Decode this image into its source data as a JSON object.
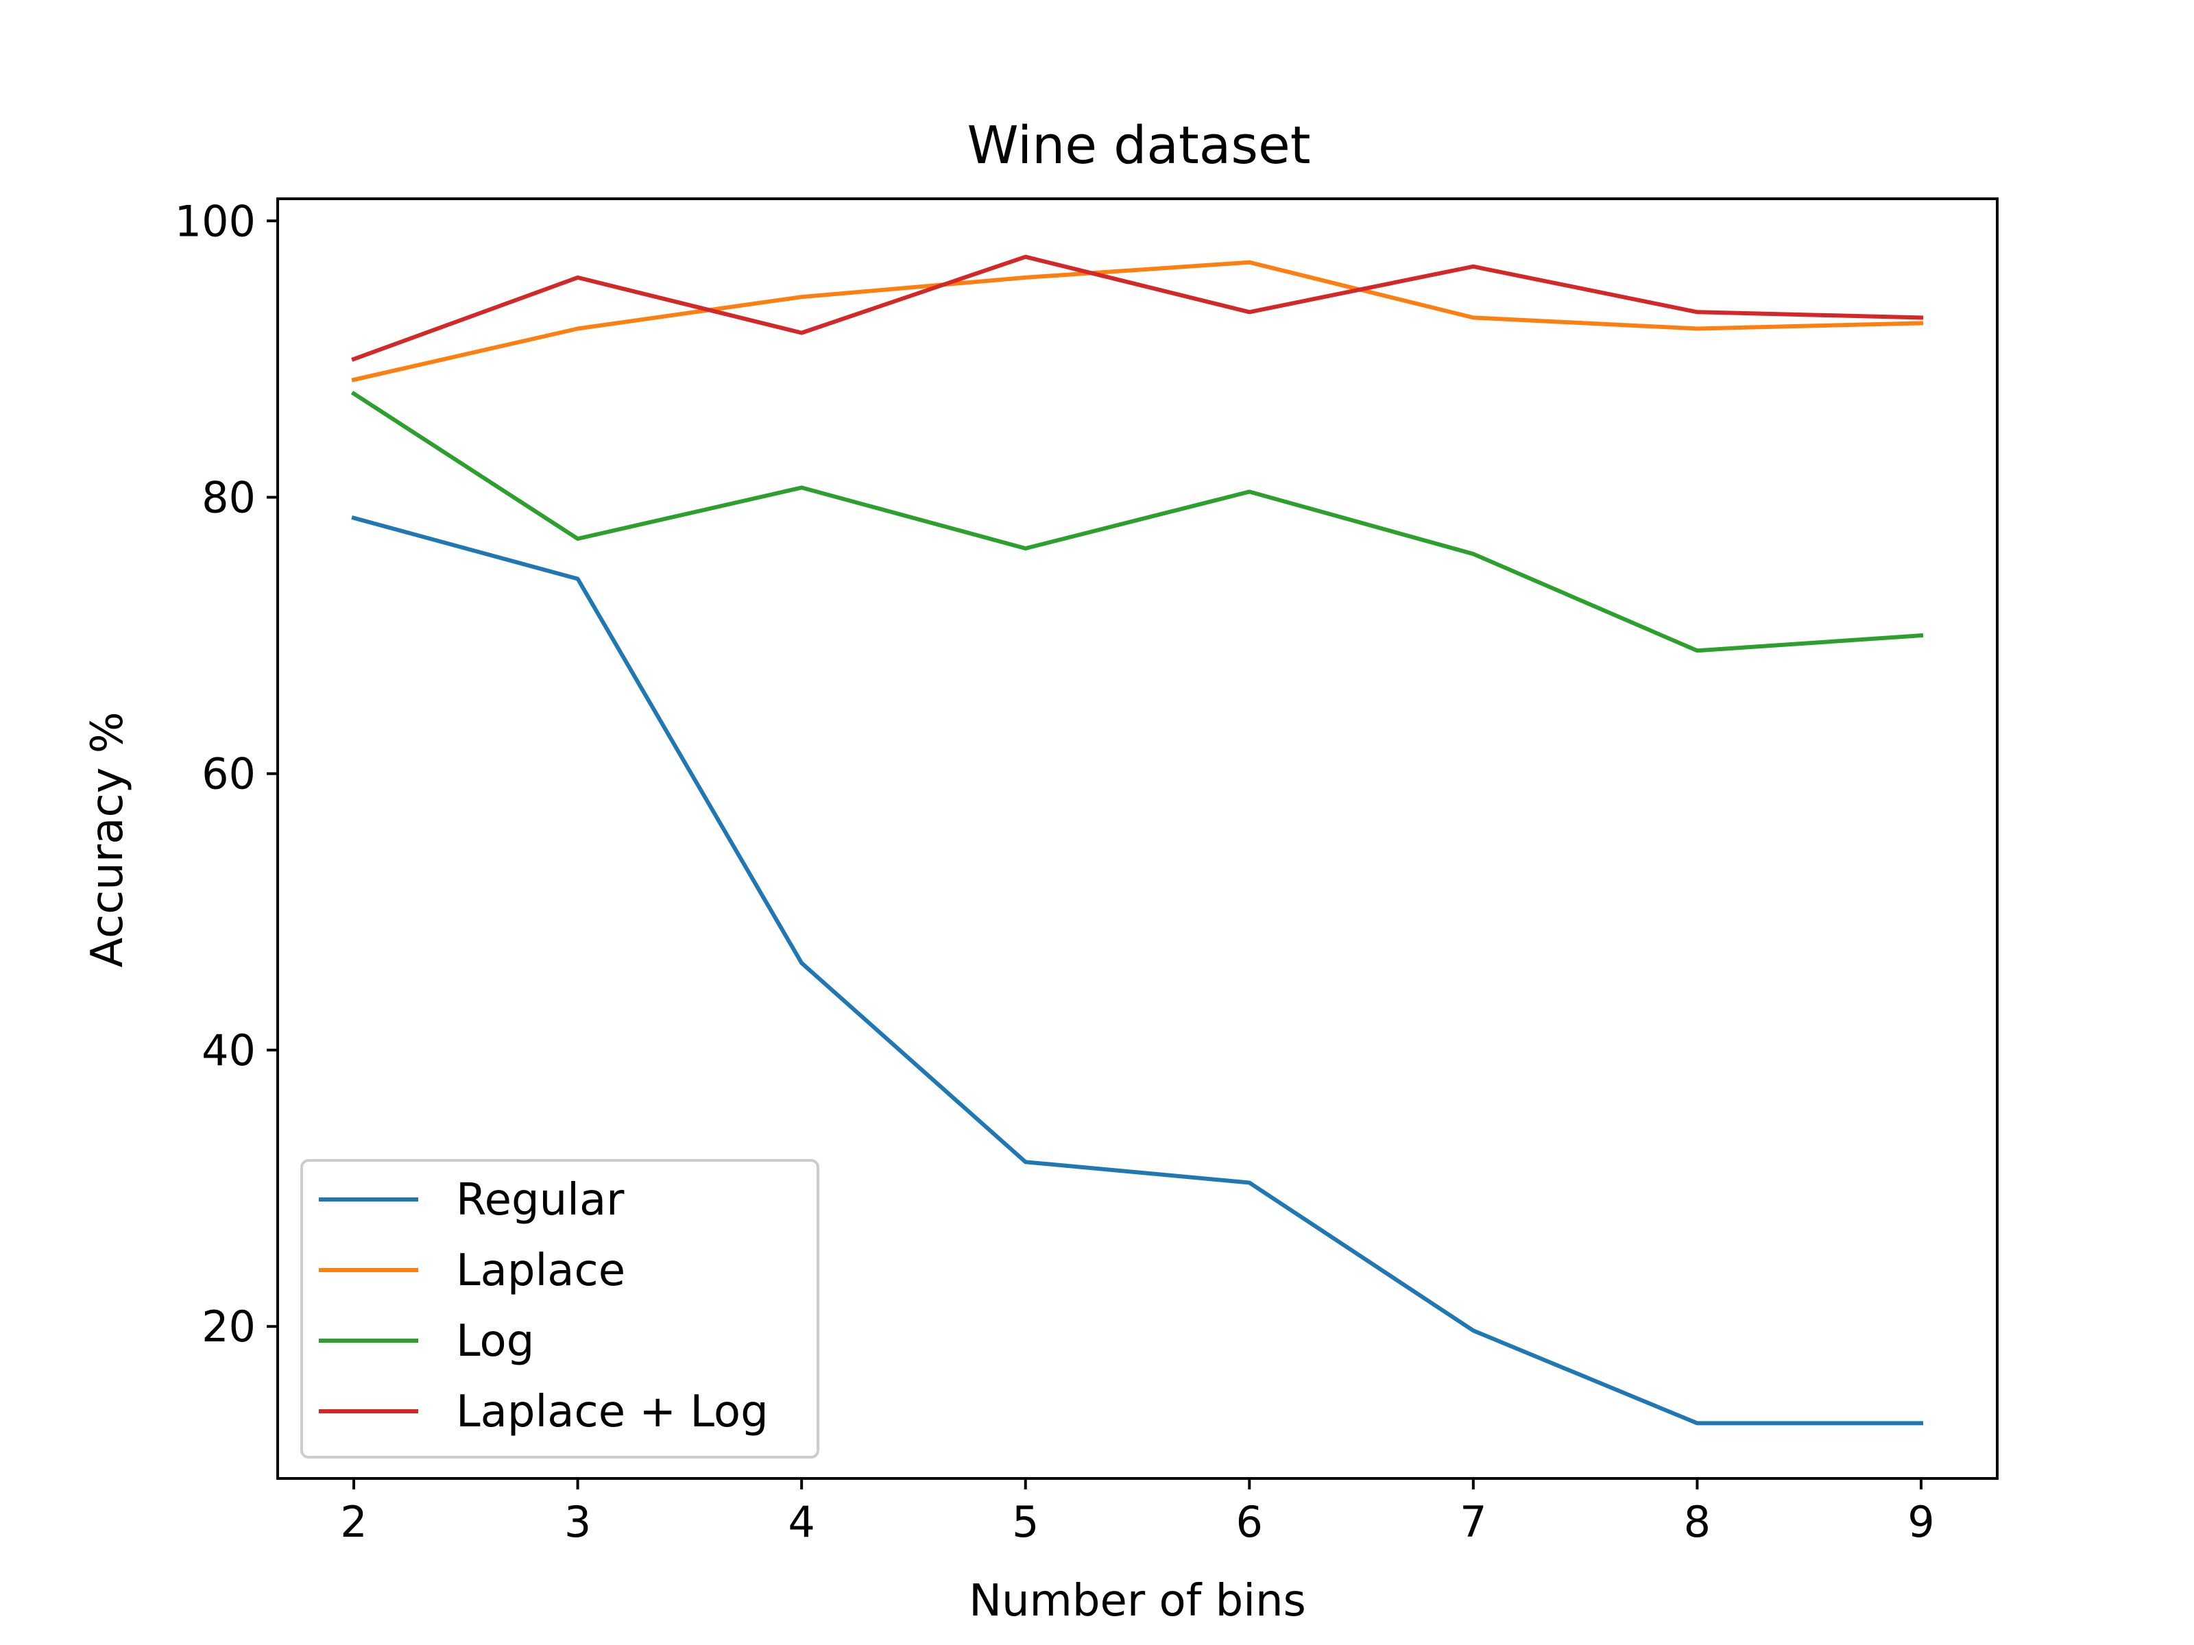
{
  "chart_data": {
    "type": "line",
    "title": "Wine dataset",
    "xlabel": "Number of bins",
    "ylabel": "Accuracy %",
    "x": [
      2,
      3,
      4,
      5,
      6,
      7,
      8,
      9
    ],
    "xlim": [
      1.66,
      9.34
    ],
    "ylim": [
      9.0,
      101.6
    ],
    "xticks": [
      2,
      3,
      4,
      5,
      6,
      7,
      8,
      9
    ],
    "yticks": [
      20,
      40,
      60,
      80,
      100
    ],
    "grid": false,
    "legend_position": "lower-left",
    "series": [
      {
        "name": "Regular",
        "color": "#1f77b4",
        "values": [
          78.5,
          74.1,
          46.3,
          31.9,
          30.4,
          19.7,
          13.0,
          13.0
        ]
      },
      {
        "name": "Laplace",
        "color": "#ff7f0e",
        "values": [
          88.5,
          92.2,
          94.5,
          95.9,
          97.0,
          93.0,
          92.2,
          92.6
        ]
      },
      {
        "name": "Log",
        "color": "#2ca02c",
        "values": [
          87.5,
          77.0,
          80.7,
          76.3,
          80.4,
          75.9,
          68.9,
          70.0
        ]
      },
      {
        "name": "Laplace + Log",
        "color": "#d62728",
        "values": [
          90.0,
          95.9,
          91.9,
          97.4,
          93.4,
          96.7,
          93.4,
          93.0
        ]
      }
    ]
  }
}
